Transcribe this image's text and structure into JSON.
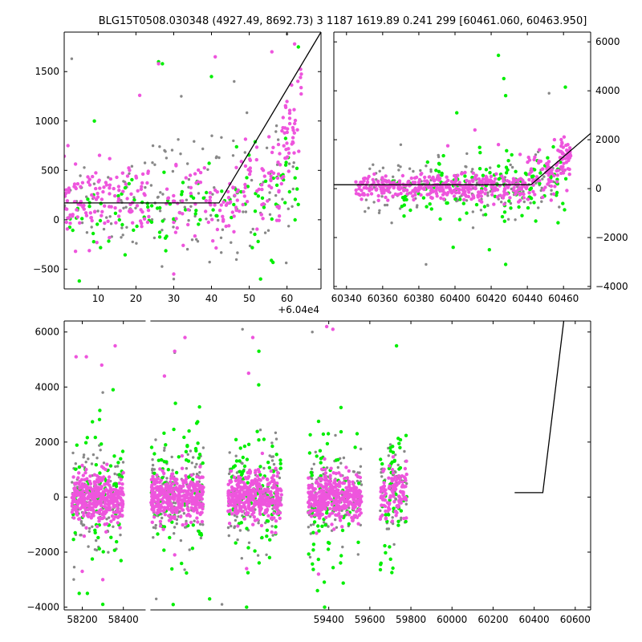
{
  "title": "BLG15T0508.030348 (4927.49, 8692.73)    3 1187 1619.89 0.241 299 [60461.060, 60463.950]",
  "colors": {
    "pink": "#ee55dd",
    "green": "#00ee00",
    "gray": "#888888",
    "model": "#000000",
    "frame": "#000000"
  },
  "chart_data": [
    {
      "id": "top-left",
      "type": "scatter",
      "x_offset_label": "+6.04e4",
      "xlim": [
        1,
        69
      ],
      "ylim": [
        -700,
        1900
      ],
      "x_ticks": [
        10,
        20,
        30,
        40,
        50,
        60
      ],
      "y_ticks": [
        -500,
        0,
        500,
        1000,
        1500
      ],
      "y_axis_side": "left",
      "model_line": [
        [
          1,
          170
        ],
        [
          42,
          170
        ],
        [
          69,
          1900
        ]
      ],
      "series": [
        {
          "color": "pink",
          "clusters": [
            {
              "x": [
                1,
                12
              ],
              "y": [
                180,
                170
              ],
              "n": 70
            },
            {
              "x": [
                12,
                24
              ],
              "y": [
                180,
                200
              ],
              "n": 60
            },
            {
              "x": [
                28,
                42
              ],
              "y": [
                150,
                170
              ],
              "n": 50
            },
            {
              "x": [
                42,
                52
              ],
              "y": [
                620,
                200
              ],
              "n": 45
            },
            {
              "x": [
                52,
                62
              ],
              "y": [
                1100,
                230
              ],
              "n": 50
            },
            {
              "x": [
                57,
                64
              ],
              "y": [
                1400,
                200
              ],
              "n": 35
            }
          ],
          "outliers": [
            [
              2,
              750
            ],
            [
              26,
              1580
            ],
            [
              41,
              1650
            ],
            [
              62,
              1780
            ],
            [
              56,
              1700
            ],
            [
              21,
              1260
            ],
            [
              4,
              -320
            ],
            [
              30,
              -550
            ]
          ]
        },
        {
          "color": "green",
          "clusters": [
            {
              "x": [
                2,
                20
              ],
              "y": [
                60,
                180
              ],
              "n": 30
            },
            {
              "x": [
                20,
                30
              ],
              "y": [
                50,
                200
              ],
              "n": 20
            },
            {
              "x": [
                30,
                48
              ],
              "y": [
                250,
                170
              ],
              "n": 30
            },
            {
              "x": [
                48,
                64
              ],
              "y": [
                450,
                260
              ],
              "n": 40
            }
          ],
          "outliers": [
            [
              9,
              1000
            ],
            [
              26,
              1600
            ],
            [
              27,
              1580
            ],
            [
              40,
              1450
            ],
            [
              63,
              1750
            ],
            [
              37,
              0
            ],
            [
              53,
              -600
            ],
            [
              5,
              -620
            ]
          ]
        },
        {
          "color": "gray",
          "clusters": [
            {
              "x": [
                1,
                20
              ],
              "y": [
                220,
                250
              ],
              "n": 40
            },
            {
              "x": [
                20,
                40
              ],
              "y": [
                250,
                300
              ],
              "n": 50
            },
            {
              "x": [
                40,
                62
              ],
              "y": [
                500,
                400
              ],
              "n": 50
            }
          ],
          "outliers": [
            [
              3,
              1630
            ],
            [
              60,
              1880
            ],
            [
              32,
              1250
            ],
            [
              30,
              -600
            ],
            [
              46,
              1400
            ]
          ]
        }
      ]
    },
    {
      "id": "top-right",
      "type": "scatter",
      "xlim": [
        60333,
        60475
      ],
      "ylim": [
        -4100,
        6400
      ],
      "x_ticks": [
        60340,
        60360,
        60380,
        60400,
        60420,
        60440,
        60460
      ],
      "y_ticks": [
        -4000,
        -2000,
        0,
        2000,
        4000,
        6000
      ],
      "y_axis_side": "right",
      "model_line": [
        [
          60333,
          160
        ],
        [
          60442,
          160
        ],
        [
          60475,
          2260
        ]
      ],
      "series": [
        {
          "color": "pink",
          "clusters": [
            {
              "x": [
                60345,
                60440
              ],
              "y": [
                40,
                260
              ],
              "n": 380
            },
            {
              "x": [
                60440,
                60457
              ],
              "y": [
                600,
                450
              ],
              "n": 60
            },
            {
              "x": [
                60457,
                60464
              ],
              "y": [
                1100,
                450
              ],
              "n": 45
            }
          ],
          "outliers": [
            [
              60424,
              1800
            ],
            [
              60411,
              2400
            ],
            [
              60396,
              1750
            ],
            [
              60455,
              2000
            ],
            [
              60436,
              1400
            ]
          ]
        },
        {
          "color": "green",
          "clusters": [
            {
              "x": [
                60365,
                60445
              ],
              "y": [
                30,
                650
              ],
              "n": 130
            },
            {
              "x": [
                60445,
                60462
              ],
              "y": [
                600,
                700
              ],
              "n": 25
            }
          ],
          "outliers": [
            [
              60424,
              5450
            ],
            [
              60427,
              4500
            ],
            [
              60428,
              3800
            ],
            [
              60401,
              3100
            ],
            [
              60461,
              4150
            ],
            [
              60419,
              -2500
            ],
            [
              60428,
              -3100
            ],
            [
              60399,
              -2400
            ]
          ]
        },
        {
          "color": "gray",
          "clusters": [
            {
              "x": [
                60350,
                60460
              ],
              "y": [
                60,
                550
              ],
              "n": 160
            }
          ],
          "outliers": [
            [
              60384,
              -3100
            ],
            [
              60452,
              3900
            ],
            [
              60446,
              1500
            ],
            [
              60365,
              -1400
            ],
            [
              60410,
              -1600
            ]
          ]
        }
      ]
    },
    {
      "id": "bottom",
      "type": "scatter",
      "xlim": [
        58112,
        60675
      ],
      "ylim": [
        -4100,
        6400
      ],
      "x_ticks": [
        58200,
        58400,
        59400,
        59600,
        59800,
        60000,
        60200,
        60400,
        60600
      ],
      "y_ticks": [
        -4000,
        -2000,
        0,
        2000,
        4000,
        6000
      ],
      "y_axis_side": "left",
      "axis_break_x": 58520,
      "model_line": [
        [
          60305,
          160
        ],
        [
          60442,
          160
        ],
        [
          60544,
          6400
        ]
      ],
      "series": [
        {
          "color": "pink",
          "clusters": [
            {
              "x": [
                58150,
                58400
              ],
              "y": [
                0,
                420
              ],
              "n": 380
            },
            {
              "x": [
                58535,
                58790
              ],
              "y": [
                0,
                420
              ],
              "n": 380
            },
            {
              "x": [
                58910,
                59170
              ],
              "y": [
                0,
                420
              ],
              "n": 380
            },
            {
              "x": [
                59300,
                59560
              ],
              "y": [
                0,
                420
              ],
              "n": 380
            },
            {
              "x": [
                59650,
                59780
              ],
              "y": [
                100,
                600
              ],
              "n": 110
            }
          ],
          "outliers": [
            [
              58170,
              5100
            ],
            [
              58220,
              5100
            ],
            [
              58295,
              4800
            ],
            [
              58360,
              5500
            ],
            [
              58600,
              4400
            ],
            [
              58650,
              5300
            ],
            [
              58700,
              5800
            ],
            [
              59010,
              4500
            ],
            [
              59030,
              5800
            ],
            [
              59390,
              6200
            ],
            [
              59420,
              6100
            ],
            [
              58200,
              -2700
            ],
            [
              58300,
              -3000
            ],
            [
              58650,
              -2100
            ],
            [
              59000,
              -2600
            ],
            [
              59350,
              -2800
            ]
          ]
        },
        {
          "color": "green",
          "clusters": [
            {
              "x": [
                58150,
                58400
              ],
              "y": [
                0,
                1300
              ],
              "n": 90
            },
            {
              "x": [
                58535,
                58790
              ],
              "y": [
                0,
                1300
              ],
              "n": 90
            },
            {
              "x": [
                58910,
                59170
              ],
              "y": [
                0,
                1300
              ],
              "n": 90
            },
            {
              "x": [
                59300,
                59560
              ],
              "y": [
                0,
                1300
              ],
              "n": 90
            },
            {
              "x": [
                59650,
                59780
              ],
              "y": [
                200,
                1500
              ],
              "n": 60
            }
          ],
          "outliers": [
            [
              58350,
              3900
            ],
            [
              58300,
              -3900
            ],
            [
              58185,
              -3500
            ],
            [
              58225,
              -3500
            ],
            [
              59380,
              -4000
            ],
            [
              59730,
              5500
            ],
            [
              59000,
              -4000
            ],
            [
              59060,
              5300
            ],
            [
              58820,
              -3700
            ]
          ]
        },
        {
          "color": "gray",
          "clusters": [
            {
              "x": [
                58150,
                58400
              ],
              "y": [
                0,
                900
              ],
              "n": 120
            },
            {
              "x": [
                58535,
                58790
              ],
              "y": [
                0,
                900
              ],
              "n": 120
            },
            {
              "x": [
                58910,
                59170
              ],
              "y": [
                0,
                900
              ],
              "n": 120
            },
            {
              "x": [
                59300,
                59560
              ],
              "y": [
                0,
                900
              ],
              "n": 120
            },
            {
              "x": [
                59650,
                59780
              ],
              "y": [
                150,
                900
              ],
              "n": 50
            }
          ],
          "outliers": [
            [
              58300,
              3800
            ],
            [
              58650,
              5250
            ],
            [
              58980,
              6100
            ],
            [
              59320,
              6000
            ],
            [
              58880,
              -3900
            ],
            [
              58560,
              -3700
            ]
          ]
        }
      ]
    }
  ]
}
